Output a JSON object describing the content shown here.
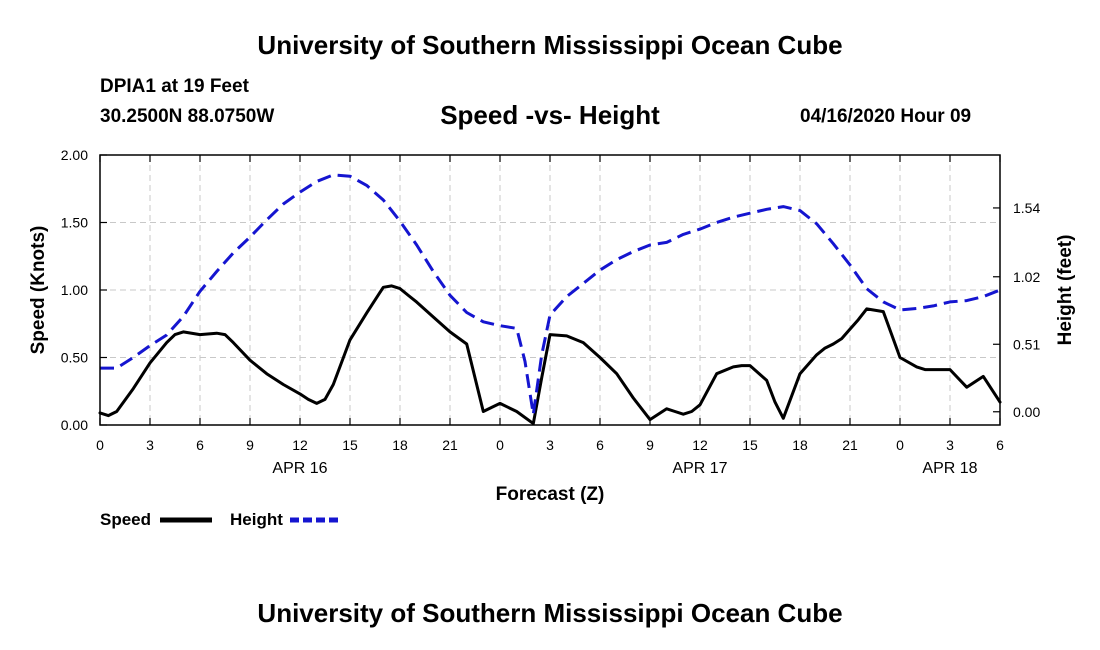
{
  "header": {
    "title": "University of Southern Mississippi Ocean Cube",
    "station": "DPIA1 at 19 Feet",
    "coords": "30.2500N 88.0750W",
    "subtitle": "Speed -vs- Height",
    "datetime": "04/16/2020 Hour 09"
  },
  "footer": {
    "title": "University of Southern Mississippi Ocean Cube"
  },
  "legend": {
    "speed_label": "Speed",
    "height_label": "Height",
    "speed_color": "#000000",
    "height_color": "#1515d0"
  },
  "chart_data": {
    "type": "line",
    "title": "Speed -vs- Height",
    "xlabel": "Forecast (Z)",
    "ylabel": "Speed (Knots)",
    "ylabel_right": "Height (feet)",
    "xlim": [
      0,
      54
    ],
    "ylim": [
      0,
      2
    ],
    "ylim_right": [
      -0.1,
      1.94
    ],
    "grid": true,
    "left_ticks": [
      "0.00",
      "0.50",
      "1.00",
      "1.50",
      "2.00"
    ],
    "right_ticks": [
      "0.00",
      "0.51",
      "1.02",
      "1.54"
    ],
    "x_tick_labels": [
      "0",
      "3",
      "6",
      "9",
      "12",
      "15",
      "18",
      "21",
      "0",
      "3",
      "6",
      "9",
      "12",
      "15",
      "18",
      "21",
      "0",
      "3",
      "6"
    ],
    "date_labels": [
      {
        "label": "APR 16",
        "hour": 12
      },
      {
        "label": "APR 17",
        "hour": 36
      },
      {
        "label": "APR 18",
        "hour": 51
      }
    ],
    "series": [
      {
        "name": "Speed",
        "axis": "left",
        "style": "solid",
        "x": [
          0,
          0.5,
          1,
          2,
          3,
          4,
          4.5,
          5,
          6,
          7,
          7.5,
          8,
          9,
          10,
          11,
          12,
          12.5,
          13,
          13.5,
          14,
          15,
          16,
          17,
          17.5,
          18,
          18.5,
          19,
          20,
          21,
          22,
          23,
          23.5,
          24,
          25,
          26,
          26.5,
          27,
          28,
          29,
          30,
          31,
          32,
          33,
          34,
          34.5,
          35,
          35.5,
          36,
          37,
          38,
          38.5,
          39,
          40,
          40.5,
          41,
          42,
          43,
          43.5,
          44,
          44.5,
          45,
          45.5,
          46,
          47,
          48,
          49,
          49.5,
          50,
          51,
          52,
          53,
          54
        ],
        "values": [
          0.09,
          0.07,
          0.1,
          0.27,
          0.46,
          0.61,
          0.67,
          0.69,
          0.67,
          0.68,
          0.67,
          0.61,
          0.48,
          0.38,
          0.3,
          0.23,
          0.19,
          0.16,
          0.19,
          0.3,
          0.63,
          0.83,
          1.02,
          1.03,
          1.01,
          0.96,
          0.91,
          0.8,
          0.69,
          0.6,
          0.1,
          0.13,
          0.16,
          0.1,
          0.01,
          0.35,
          0.67,
          0.66,
          0.61,
          0.5,
          0.38,
          0.2,
          0.04,
          0.12,
          0.1,
          0.08,
          0.1,
          0.15,
          0.38,
          0.43,
          0.44,
          0.44,
          0.33,
          0.17,
          0.05,
          0.38,
          0.52,
          0.57,
          0.6,
          0.64,
          0.71,
          0.78,
          0.86,
          0.84,
          0.5,
          0.43,
          0.41,
          0.41,
          0.41,
          0.28,
          0.36,
          0.17
        ]
      },
      {
        "name": "Height",
        "axis": "right",
        "style": "dashed",
        "x": [
          0,
          1,
          2,
          3,
          4,
          5,
          6,
          7,
          8,
          9,
          10,
          11,
          12,
          13,
          14,
          15,
          16,
          17,
          18,
          19,
          20,
          21,
          22,
          23,
          24,
          25,
          25.5,
          26,
          26.5,
          27,
          28,
          29,
          30,
          31,
          32,
          33,
          34,
          35,
          36,
          37,
          38,
          39,
          40,
          41,
          42,
          43,
          44,
          45,
          46,
          47,
          48,
          49,
          50,
          51,
          52,
          53,
          54
        ],
        "values": [
          0.33,
          0.33,
          0.41,
          0.5,
          0.58,
          0.72,
          0.91,
          1.06,
          1.2,
          1.32,
          1.45,
          1.57,
          1.66,
          1.74,
          1.79,
          1.78,
          1.71,
          1.6,
          1.44,
          1.26,
          1.06,
          0.88,
          0.75,
          0.68,
          0.65,
          0.63,
          0.38,
          -0.02,
          0.43,
          0.73,
          0.87,
          0.97,
          1.07,
          1.15,
          1.21,
          1.26,
          1.28,
          1.34,
          1.38,
          1.43,
          1.47,
          1.5,
          1.53,
          1.55,
          1.52,
          1.42,
          1.27,
          1.11,
          0.93,
          0.83,
          0.77,
          0.78,
          0.8,
          0.83,
          0.84,
          0.87,
          0.92
        ]
      }
    ]
  }
}
